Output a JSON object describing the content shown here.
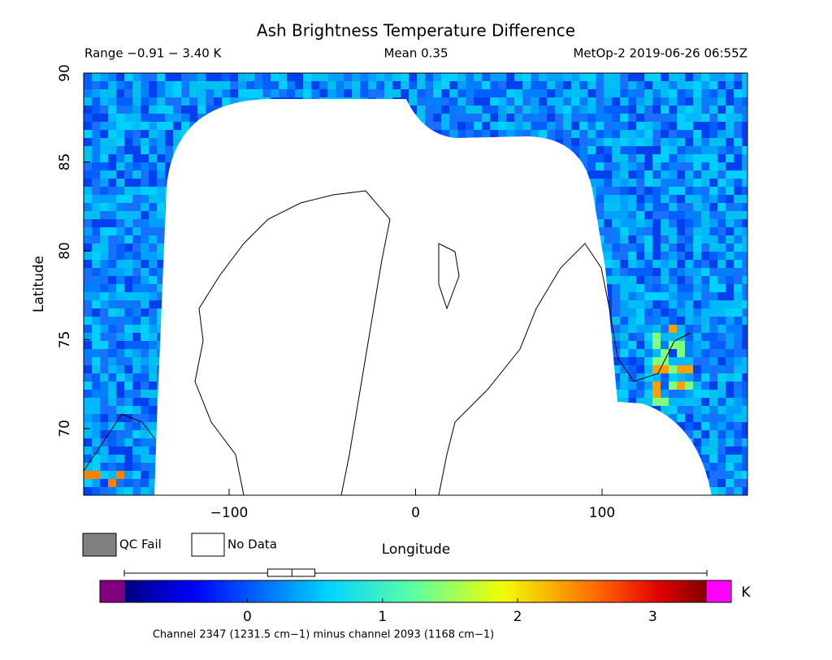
{
  "title": "Ash Brightness Temperature Difference",
  "info": {
    "range": "Range −0.91 − 3.40 K",
    "mean": "Mean 0.35",
    "satellite": "MetOp-2 2019-06-26 06:55Z"
  },
  "map": {
    "xlabel": "Longitude",
    "ylabel": "Latitude",
    "xlim": [
      -178,
      178
    ],
    "ylim": [
      66.25,
      90
    ],
    "xticks": [
      {
        "value": -100,
        "label": "−100"
      },
      0,
      100
    ],
    "yticks": [
      70,
      75,
      80,
      85,
      90
    ]
  },
  "legend": [
    {
      "label": "QC Fail",
      "color": "#808080"
    },
    {
      "label": "No Data",
      "color": "#ffffff"
    }
  ],
  "colorbar": {
    "clim": [
      -0.91,
      3.4
    ],
    "ticks": [
      0,
      1,
      2,
      3
    ],
    "unit": "K",
    "under_color": "#800080",
    "over_color": "#ff00ff"
  },
  "box_plot": {
    "min": -0.91,
    "q1": 0.15,
    "median": 0.33,
    "q3": 0.5,
    "max": 3.4
  },
  "footnote": "Channel 2347 (1231.5 cm−1) minus channel 2093 (1168 cm−1)"
}
